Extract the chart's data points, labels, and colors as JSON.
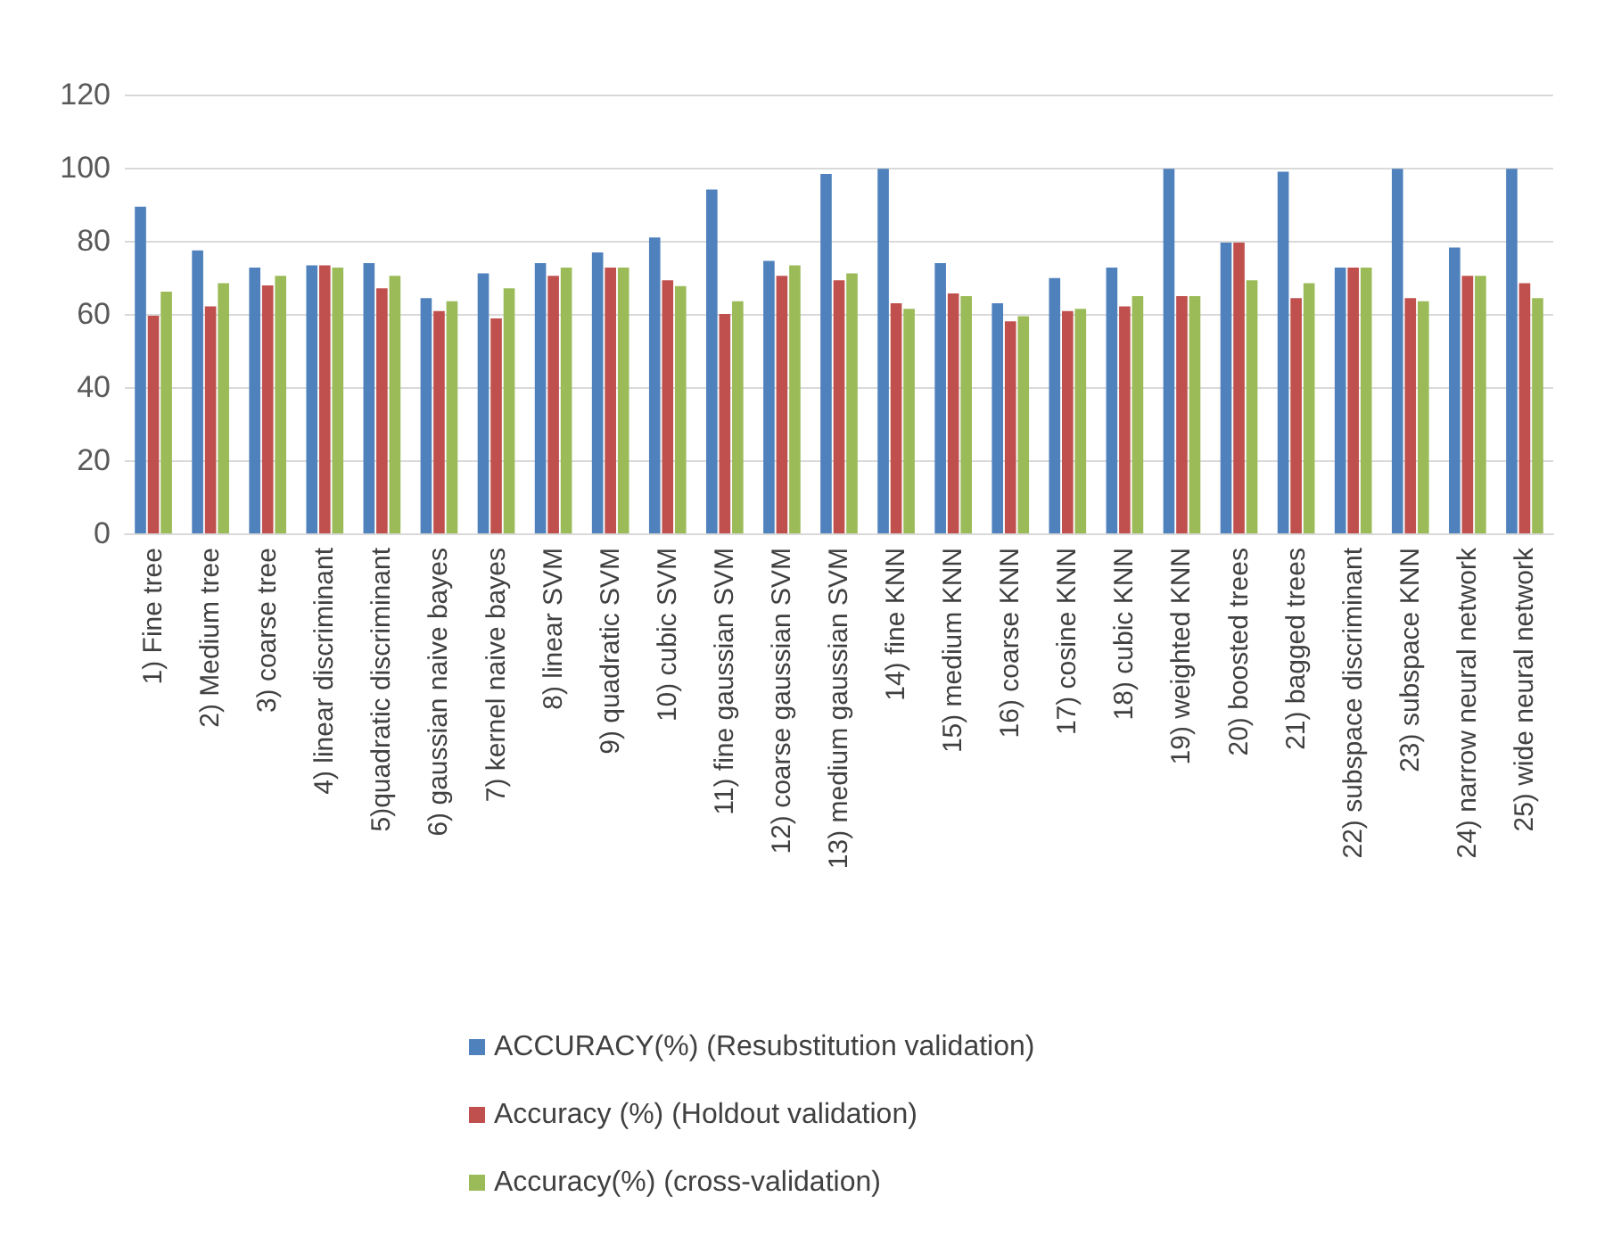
{
  "chart_data": {
    "type": "bar",
    "categories": [
      "1) Fine tree",
      "2) Medium tree",
      "3) coarse tree",
      "4) linear discriminant",
      "5)quadratic discriminant",
      "6) gaussian naive bayes",
      "7) kernel naive bayes",
      "8) linear SVM",
      "9) quadratic SVM",
      "10) cubic SVM",
      "11) fine gaussian SVM",
      "12) coarse gaussian SVM",
      "13) medium gaussian SVM",
      "14) fine KNN",
      "15) medium KNN",
      "16) coarse KNN",
      "17) cosine KNN",
      "18) cubic KNN",
      "19) weighted KNN",
      "20) boosted trees",
      "21) bagged trees",
      "22) subspace discriminant",
      "23) subspace KNN",
      "24) narrow neural network",
      "25) wide neural network"
    ],
    "series": [
      {
        "name": "ACCURACY(%) (Resubstitution validation)",
        "color": "#4f81bd",
        "values": [
          89.3,
          77.4,
          72.7,
          73.3,
          73.9,
          64.3,
          71.1,
          73.9,
          76.8,
          80.9,
          94.0,
          74.5,
          98.3,
          99.7,
          73.9,
          62.9,
          69.8,
          72.7,
          99.7,
          79.5,
          98.9,
          72.7,
          99.7,
          78.2,
          99.7
        ]
      },
      {
        "name": "Accuracy (%) (Holdout validation)",
        "color": "#c0504d",
        "values": [
          59.5,
          62.1,
          67.8,
          73.3,
          67.0,
          60.8,
          58.8,
          70.4,
          72.7,
          69.2,
          60.0,
          70.4,
          69.2,
          62.9,
          65.6,
          58.0,
          60.8,
          62.1,
          64.9,
          79.5,
          64.3,
          72.7,
          64.3,
          70.4,
          68.4
        ]
      },
      {
        "name": "Accuracy(%) (cross-validation)",
        "color": "#9bbb59",
        "values": [
          66.1,
          68.4,
          70.4,
          72.7,
          70.4,
          63.5,
          67.0,
          72.7,
          72.7,
          67.6,
          63.5,
          73.3,
          71.1,
          61.4,
          64.9,
          59.4,
          61.4,
          64.9,
          64.9,
          69.2,
          68.4,
          72.7,
          63.5,
          70.4,
          64.3
        ]
      }
    ],
    "ylim": [
      0,
      120
    ],
    "yticks": [
      0,
      20,
      40,
      60,
      80,
      100,
      120
    ],
    "grid": "y",
    "legend": "bottom"
  }
}
